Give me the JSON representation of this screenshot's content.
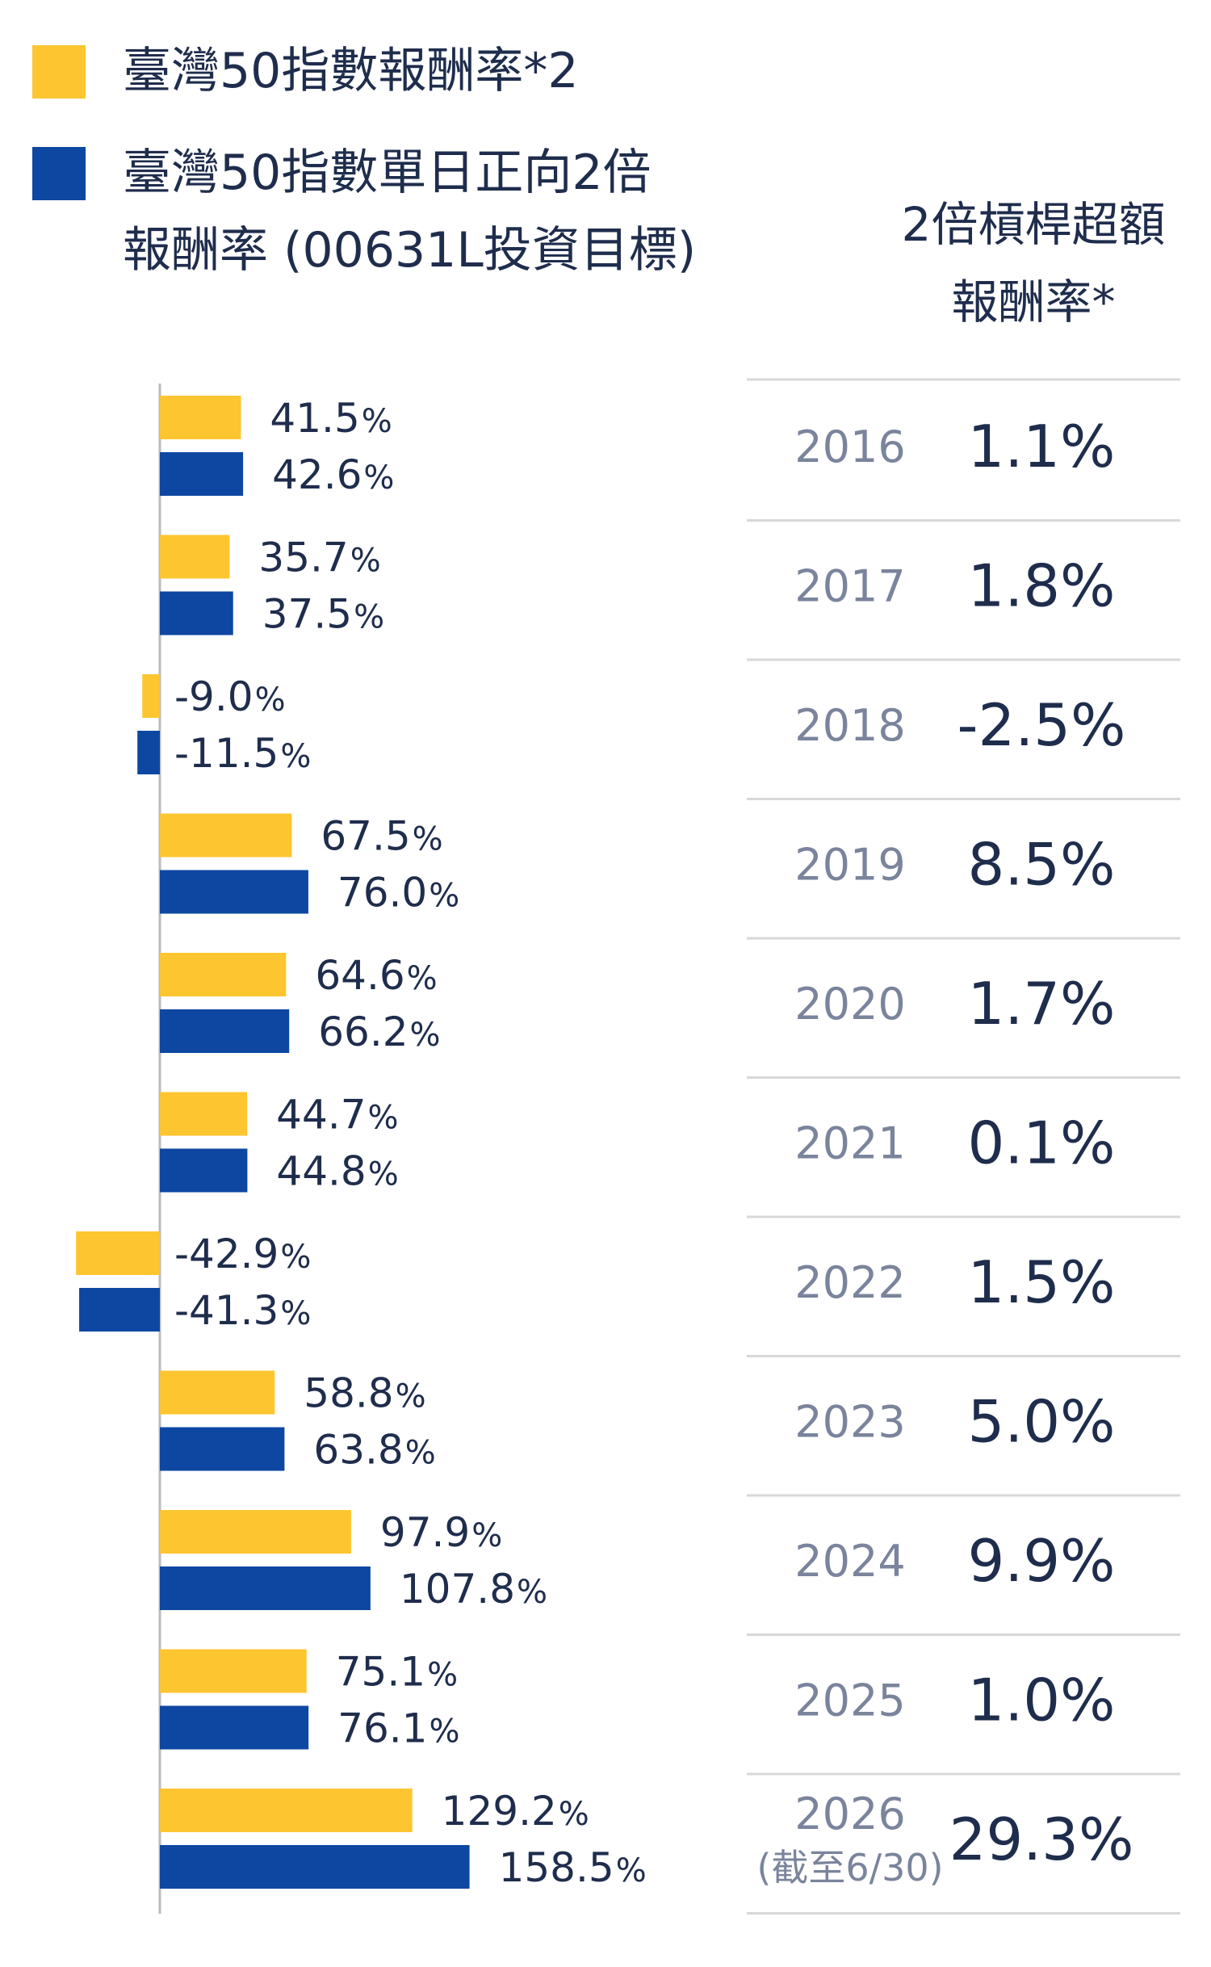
{
  "legend": {
    "series1_label": "臺灣50指數報酬率*2",
    "series2_line1": "臺灣50指數單日正向2倍",
    "series2_line2": "報酬率 (00631L投資目標)"
  },
  "table_header": {
    "line1": "2倍槓桿超額",
    "line2": "報酬率*"
  },
  "colors": {
    "series1": "#fdc530",
    "series2": "#0d47a1",
    "axis": "#bbbbbb",
    "divider": "#d8d8d8"
  },
  "chart_data": {
    "type": "bar",
    "orientation": "horizontal",
    "categories": [
      "2016",
      "2017",
      "2018",
      "2019",
      "2020",
      "2021",
      "2022",
      "2023",
      "2024",
      "2025",
      "2026"
    ],
    "category_notes": [
      "",
      "",
      "",
      "",
      "",
      "",
      "",
      "",
      "",
      "",
      "(截至6/30)"
    ],
    "series": [
      {
        "name": "臺灣50指數報酬率*2",
        "color": "#fdc530",
        "values": [
          41.5,
          35.7,
          -9.0,
          67.5,
          64.6,
          44.7,
          -42.9,
          58.8,
          97.9,
          75.1,
          129.2
        ],
        "labels": [
          "41.5",
          "35.7",
          "-9.0",
          "67.5",
          "64.6",
          "44.7",
          "-42.9",
          "58.8",
          "97.9",
          "75.1",
          "129.2"
        ]
      },
      {
        "name": "臺灣50指數單日正向2倍報酬率 (00631L投資目標)",
        "color": "#0d47a1",
        "values": [
          42.6,
          37.5,
          -11.5,
          76.0,
          66.2,
          44.8,
          -41.3,
          63.8,
          107.8,
          76.1,
          158.5
        ],
        "labels": [
          "42.6",
          "37.5",
          "-11.5",
          "76.0",
          "66.2",
          "44.8",
          "-41.3",
          "63.8",
          "107.8",
          "76.1",
          "158.5"
        ]
      }
    ],
    "unit": "%",
    "excess_returns": [
      "1.1%",
      "1.8%",
      "-2.5%",
      "8.5%",
      "1.7%",
      "0.1%",
      "1.5%",
      "5.0%",
      "9.9%",
      "1.0%",
      "29.3%"
    ]
  }
}
